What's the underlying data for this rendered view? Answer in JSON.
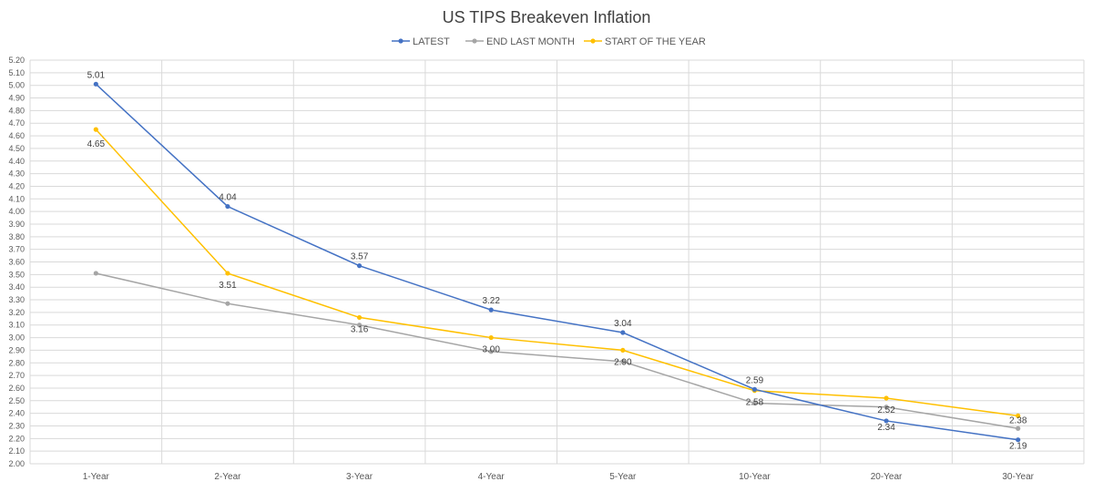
{
  "chart_data": {
    "type": "line",
    "title": "US TIPS Breakeven Inflation",
    "xlabel": "",
    "ylabel": "",
    "ylim": [
      2.0,
      5.2
    ],
    "ytick_step": 0.1,
    "grid": true,
    "legend_position": "top-center",
    "categories": [
      "1-Year",
      "2-Year",
      "3-Year",
      "4-Year",
      "5-Year",
      "10-Year",
      "20-Year",
      "30-Year"
    ],
    "series": [
      {
        "name": "LATEST",
        "color": "#4472c4",
        "values": [
          5.01,
          4.04,
          3.57,
          3.22,
          3.04,
          2.59,
          2.34,
          2.19
        ],
        "labels": [
          "5.01",
          "4.04",
          "3.57",
          "3.22",
          "3.04",
          "2.59",
          "2.34",
          "2.19"
        ]
      },
      {
        "name": "END LAST MONTH",
        "color": "#a5a5a5",
        "values": [
          3.51,
          3.27,
          3.1,
          2.89,
          2.81,
          2.48,
          2.45,
          2.28
        ],
        "labels": [
          "",
          "",
          "",
          "",
          "",
          "",
          "",
          ""
        ]
      },
      {
        "name": "START OF THE YEAR",
        "color": "#ffc000",
        "values": [
          4.65,
          3.51,
          3.16,
          3.0,
          2.9,
          2.58,
          2.52,
          2.38
        ],
        "labels": [
          "4.65",
          "3.51",
          "3.16",
          "3.00",
          "2.90",
          "2.58",
          "2.52",
          "2.38"
        ]
      }
    ]
  }
}
